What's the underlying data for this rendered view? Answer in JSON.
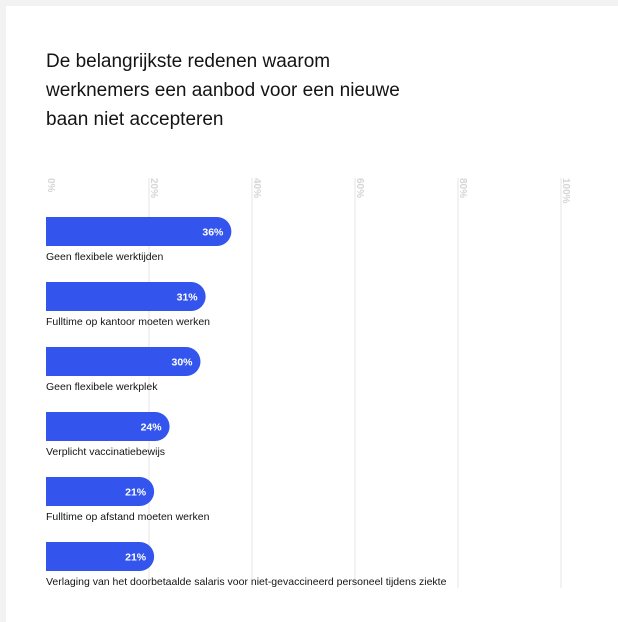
{
  "chart_data": {
    "type": "bar",
    "orientation": "horizontal",
    "title": "De belangrijkste redenen waarom werknemers een aanbod voor een nieuwe baan niet accepteren",
    "title_lines": [
      "De belangrijkste redenen waarom",
      "werknemers een aanbod voor een nieuwe",
      "baan niet accepteren"
    ],
    "categories": [
      "Geen flexibele werktijden",
      "Fulltime op kantoor moeten werken",
      "Geen flexibele werkplek",
      "Verplicht vaccinatiebewijs",
      "Fulltime op afstand moeten werken",
      "Verlaging van het doorbetaalde salaris voor niet-gevaccineerd personeel tijdens ziekte"
    ],
    "values": [
      36,
      31,
      30,
      24,
      21,
      21
    ],
    "value_labels": [
      "36%",
      "31%",
      "30%",
      "24%",
      "21%",
      "21%"
    ],
    "ticks": [
      0,
      20,
      40,
      60,
      80,
      100
    ],
    "tick_labels": [
      "0%",
      "20%",
      "40%",
      "60%",
      "80%",
      "100%"
    ],
    "xlim": [
      0,
      100
    ],
    "grid": true,
    "legend": "none",
    "colors": {
      "bar": "#3355ee",
      "grid": "#e6e6e6",
      "tick_text": "#d6d6d6",
      "label_text": "#141414",
      "value_text": "#ffffff"
    }
  }
}
